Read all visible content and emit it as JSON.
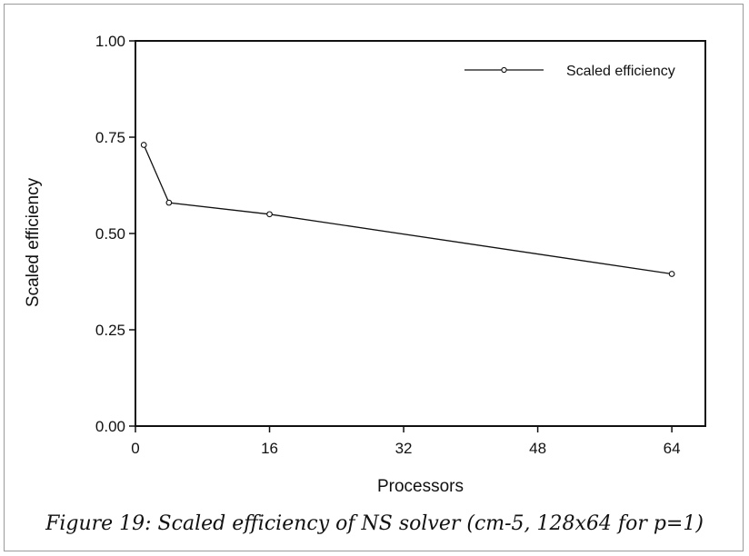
{
  "chart_data": {
    "type": "line",
    "xlabel": "Processors",
    "ylabel": "Scaled efficiency",
    "xlim": [
      0,
      68
    ],
    "ylim": [
      0,
      1
    ],
    "x_ticks": [
      0,
      16,
      32,
      48,
      64
    ],
    "x_tick_labels": [
      "0",
      "16",
      "32",
      "48",
      "64"
    ],
    "y_ticks": [
      0,
      0.25,
      0.5,
      0.75,
      1
    ],
    "y_tick_labels": [
      "0.00",
      "0.25",
      "0.50",
      "0.75",
      "1.00"
    ],
    "legend_position": "top-right",
    "grid": false,
    "series": [
      {
        "name": "Scaled efficiency",
        "x": [
          1,
          4,
          16,
          64
        ],
        "values": [
          0.73,
          0.58,
          0.55,
          0.395
        ]
      }
    ]
  },
  "caption": "Figure 19: Scaled efficiency of NS solver (cm-5, 128x64 for p=1)"
}
